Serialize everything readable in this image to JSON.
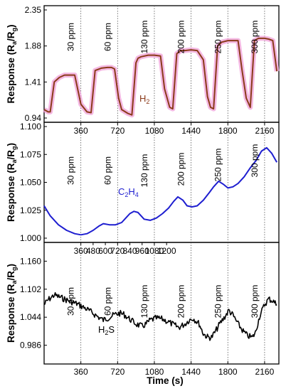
{
  "chart_data": [
    {
      "type": "line",
      "series_label": {
        "main": "H",
        "sub": "2"
      },
      "color": "#8B3A1A",
      "glow": "#F0A0D8",
      "ylim": [
        0.94,
        2.35
      ],
      "xlim": [
        0,
        2300
      ],
      "yticks": [
        "2.35",
        "1.88",
        "1.41",
        "0.94"
      ],
      "xticks": [],
      "vlines": [
        360,
        720,
        1080,
        1440,
        1800,
        2160
      ],
      "annotations": [
        "30 ppm",
        "60 ppm",
        "130 ppm",
        "200 ppm",
        "250 ppm",
        "300 ppm"
      ],
      "x": [
        0,
        40,
        60,
        100,
        150,
        200,
        260,
        300,
        360,
        420,
        460,
        500,
        560,
        620,
        660,
        690,
        730,
        760,
        820,
        860,
        900,
        920,
        950,
        1020,
        1080,
        1140,
        1180,
        1230,
        1260,
        1300,
        1340,
        1380,
        1440,
        1500,
        1560,
        1600,
        1630,
        1660,
        1700,
        1740,
        1800,
        1860,
        1900,
        1940,
        1980,
        2020,
        2060,
        2100,
        2160,
        2200,
        2240,
        2280
      ],
      "y": [
        1.05,
        1.02,
        1.02,
        1.41,
        1.47,
        1.5,
        1.5,
        1.5,
        1.12,
        1.02,
        1.01,
        1.56,
        1.59,
        1.6,
        1.6,
        1.58,
        1.2,
        1.05,
        1.0,
        0.98,
        1.66,
        1.72,
        1.74,
        1.76,
        1.76,
        1.75,
        1.32,
        1.08,
        1.06,
        1.78,
        1.82,
        1.82,
        1.83,
        1.82,
        1.7,
        1.22,
        1.08,
        1.06,
        1.88,
        1.93,
        1.95,
        1.95,
        1.95,
        1.56,
        1.2,
        1.08,
        1.95,
        1.98,
        1.98,
        1.97,
        1.95,
        1.55
      ],
      "noise": 0.0
    },
    {
      "type": "line",
      "series_label": {
        "main": "C",
        "sub1": "2",
        "mid": "H",
        "sub2": "4"
      },
      "color": "#1E1ED0",
      "glow": null,
      "ylim": [
        1.0,
        1.1
      ],
      "xlim": [
        0,
        2300
      ],
      "yticks": [
        "1.100",
        "1.075",
        "1.050",
        "1.025",
        "1.000"
      ],
      "xticks": [
        "360",
        "720",
        "1080",
        "1440",
        "1800",
        "2160"
      ],
      "vlines": [
        360,
        720,
        1080,
        1440,
        1800,
        2160
      ],
      "annotations": [
        "30 ppm",
        "60 ppm",
        "130 ppm",
        "200 ppm",
        "250 ppm",
        "300 ppm"
      ],
      "x": [
        0,
        60,
        140,
        220,
        300,
        360,
        420,
        480,
        540,
        580,
        640,
        700,
        760,
        800,
        840,
        880,
        920,
        980,
        1040,
        1100,
        1160,
        1220,
        1270,
        1310,
        1360,
        1400,
        1450,
        1500,
        1560,
        1620,
        1660,
        1710,
        1760,
        1800,
        1850,
        1900,
        1960,
        2020,
        2080,
        2130,
        2180,
        2230,
        2280
      ],
      "y": [
        1.029,
        1.02,
        1.012,
        1.007,
        1.004,
        1.003,
        1.004,
        1.007,
        1.011,
        1.013,
        1.012,
        1.012,
        1.014,
        1.018,
        1.022,
        1.024,
        1.023,
        1.017,
        1.016,
        1.018,
        1.022,
        1.027,
        1.033,
        1.037,
        1.034,
        1.029,
        1.028,
        1.029,
        1.034,
        1.041,
        1.046,
        1.051,
        1.048,
        1.045,
        1.046,
        1.049,
        1.055,
        1.063,
        1.07,
        1.078,
        1.081,
        1.076,
        1.068
      ],
      "noise": 0.0
    },
    {
      "type": "line",
      "series_label": {
        "main": "H",
        "sub": "2",
        "tail": "S"
      },
      "color": "#000000",
      "glow": null,
      "ylim": [
        0.956,
        1.19
      ],
      "xlim": [
        0,
        2300
      ],
      "yticks": [
        "1.160",
        "1.102",
        "1.044",
        "0.986"
      ],
      "xticks": [
        "360",
        "480",
        "600",
        "720",
        "840",
        "960",
        "1080",
        "1200"
      ],
      "xticks_bottom": [
        "360",
        "720",
        "1080",
        "1440",
        "1800",
        "2160"
      ],
      "vlines": [
        360,
        720,
        1080,
        1440,
        1800,
        2160
      ],
      "annotations": [
        "30 ppm",
        "60 ppm",
        "130 ppm",
        "200 ppm",
        "250 ppm",
        "300 ppm"
      ],
      "x": [
        0,
        40,
        100,
        160,
        240,
        320,
        400,
        460,
        520,
        580,
        640,
        700,
        740,
        780,
        840,
        900,
        960,
        1000,
        1040,
        1100,
        1160,
        1220,
        1280,
        1320,
        1380,
        1420,
        1460,
        1520,
        1560,
        1600,
        1640,
        1680,
        1720,
        1770,
        1810,
        1850,
        1900,
        1950,
        1990,
        2040,
        2070,
        2110,
        2160,
        2200,
        2240,
        2280
      ],
      "y": [
        1.07,
        1.08,
        1.09,
        1.085,
        1.078,
        1.072,
        1.063,
        1.055,
        1.046,
        1.038,
        1.044,
        1.05,
        1.052,
        1.05,
        1.04,
        1.03,
        1.025,
        1.03,
        1.038,
        1.042,
        1.04,
        1.034,
        1.027,
        1.023,
        1.03,
        1.038,
        1.042,
        1.03,
        1.01,
        1.003,
        1.002,
        1.015,
        1.03,
        1.045,
        1.058,
        1.048,
        1.03,
        1.015,
        1.006,
        1.002,
        1.012,
        1.045,
        1.07,
        1.082,
        1.078,
        1.07
      ],
      "noise": 0.006
    }
  ],
  "axes": {
    "ylabel_main": "Response (R",
    "ylabel_sub_a": "a",
    "ylabel_mid": "/R",
    "ylabel_sub_g": "g",
    "ylabel_end": ")",
    "xlabel": "Time (s)"
  }
}
